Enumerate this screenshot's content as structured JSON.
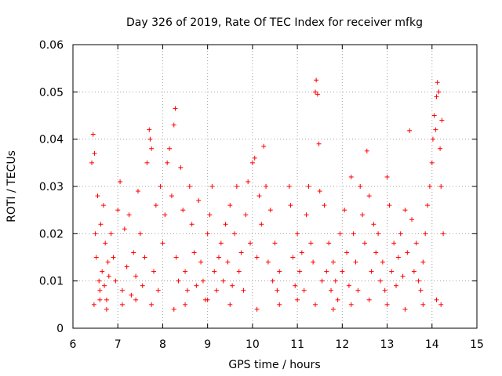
{
  "chart_data": {
    "type": "scatter",
    "title": "Day 326 of 2019, Rate Of TEC Index for receiver mfkg",
    "xlabel": "GPS time / hours",
    "ylabel": "ROTI / TECUs",
    "xlim": [
      6,
      15
    ],
    "ylim": [
      0,
      0.06
    ],
    "x_ticks": [
      6,
      7,
      8,
      9,
      10,
      11,
      12,
      13,
      14,
      15
    ],
    "x_tick_labels": [
      "6",
      "7",
      "8",
      "9",
      "10",
      "11",
      "12",
      "13",
      "14",
      "15"
    ],
    "y_ticks": [
      0,
      0.01,
      0.02,
      0.03,
      0.04,
      0.05,
      0.06
    ],
    "y_tick_labels": [
      "0",
      "0.01",
      "0.02",
      "0.03",
      "0.04",
      "0.05",
      "0.06"
    ],
    "grid": true,
    "marker": "plus",
    "series": [
      {
        "name": "ROTI",
        "color": "#ff0000",
        "x": [
          6.42,
          6.45,
          6.48,
          6.5,
          6.52,
          6.55,
          6.58,
          6.6,
          6.62,
          6.65,
          6.68,
          6.7,
          6.72,
          6.75,
          6.78,
          6.8,
          6.85,
          6.9,
          6.95,
          7.0,
          7.05,
          7.1,
          7.15,
          7.2,
          7.25,
          7.3,
          7.35,
          7.4,
          7.45,
          7.5,
          7.55,
          7.6,
          7.65,
          7.7,
          7.72,
          7.75,
          7.8,
          7.85,
          7.9,
          7.95,
          8.0,
          8.05,
          8.1,
          8.15,
          8.2,
          8.25,
          8.28,
          8.3,
          8.35,
          8.4,
          8.45,
          8.5,
          8.55,
          8.6,
          8.65,
          8.7,
          8.75,
          8.8,
          8.85,
          8.9,
          8.95,
          9.0,
          9.05,
          9.1,
          9.15,
          9.2,
          9.25,
          9.3,
          9.35,
          9.4,
          9.45,
          9.5,
          9.55,
          9.6,
          9.65,
          9.7,
          9.75,
          9.8,
          9.85,
          9.9,
          9.95,
          10.0,
          10.05,
          10.1,
          10.15,
          10.2,
          10.25,
          10.3,
          10.35,
          10.4,
          10.45,
          10.5,
          10.55,
          10.6,
          10.82,
          10.85,
          10.9,
          10.95,
          11.0,
          11.05,
          11.1,
          11.15,
          11.2,
          11.25,
          11.3,
          11.35,
          11.4,
          11.42,
          11.45,
          11.48,
          11.5,
          11.55,
          11.6,
          11.65,
          11.7,
          11.75,
          11.8,
          11.85,
          11.9,
          11.95,
          12.0,
          12.05,
          12.1,
          12.15,
          12.2,
          12.25,
          12.3,
          12.35,
          12.4,
          12.45,
          12.5,
          12.55,
          12.6,
          12.65,
          12.7,
          12.75,
          12.8,
          12.85,
          12.9,
          12.95,
          13.0,
          13.05,
          13.1,
          13.15,
          13.2,
          13.25,
          13.3,
          13.35,
          13.4,
          13.45,
          13.5,
          13.55,
          13.6,
          13.65,
          13.7,
          13.75,
          13.8,
          13.85,
          13.9,
          13.95,
          14.0,
          14.02,
          14.05,
          14.08,
          14.1,
          14.12,
          14.15,
          14.18,
          14.2,
          14.22,
          14.25,
          6.47,
          6.6,
          6.75,
          7.1,
          7.4,
          7.75,
          8.25,
          8.5,
          9.0,
          9.5,
          10.1,
          10.6,
          11.0,
          11.4,
          11.8,
          12.2,
          12.6,
          13.0,
          13.4,
          13.8,
          14.1,
          14.2
        ],
        "y": [
          0.035,
          0.041,
          0.037,
          0.02,
          0.015,
          0.028,
          0.01,
          0.008,
          0.022,
          0.012,
          0.026,
          0.009,
          0.018,
          0.006,
          0.014,
          0.011,
          0.02,
          0.015,
          0.01,
          0.025,
          0.031,
          0.008,
          0.021,
          0.013,
          0.024,
          0.007,
          0.016,
          0.011,
          0.029,
          0.02,
          0.009,
          0.015,
          0.035,
          0.042,
          0.04,
          0.038,
          0.012,
          0.026,
          0.008,
          0.03,
          0.018,
          0.024,
          0.035,
          0.038,
          0.028,
          0.043,
          0.0465,
          0.015,
          0.01,
          0.034,
          0.025,
          0.012,
          0.008,
          0.03,
          0.022,
          0.016,
          0.009,
          0.027,
          0.014,
          0.01,
          0.006,
          0.02,
          0.024,
          0.03,
          0.012,
          0.008,
          0.015,
          0.018,
          0.01,
          0.022,
          0.014,
          0.026,
          0.009,
          0.02,
          0.03,
          0.012,
          0.016,
          0.008,
          0.024,
          0.031,
          0.018,
          0.035,
          0.036,
          0.015,
          0.028,
          0.022,
          0.0385,
          0.03,
          0.014,
          0.025,
          0.01,
          0.018,
          0.008,
          0.012,
          0.03,
          0.026,
          0.015,
          0.009,
          0.02,
          0.012,
          0.016,
          0.008,
          0.024,
          0.03,
          0.018,
          0.014,
          0.05,
          0.0525,
          0.0495,
          0.039,
          0.029,
          0.01,
          0.026,
          0.012,
          0.018,
          0.008,
          0.014,
          0.01,
          0.006,
          0.02,
          0.012,
          0.025,
          0.016,
          0.009,
          0.032,
          0.02,
          0.014,
          0.008,
          0.03,
          0.024,
          0.018,
          0.0375,
          0.028,
          0.012,
          0.022,
          0.016,
          0.02,
          0.01,
          0.014,
          0.008,
          0.032,
          0.026,
          0.012,
          0.018,
          0.009,
          0.015,
          0.02,
          0.011,
          0.025,
          0.016,
          0.0418,
          0.023,
          0.012,
          0.018,
          0.01,
          0.008,
          0.014,
          0.02,
          0.026,
          0.03,
          0.035,
          0.04,
          0.045,
          0.042,
          0.049,
          0.052,
          0.05,
          0.038,
          0.03,
          0.044,
          0.02,
          0.005,
          0.006,
          0.004,
          0.005,
          0.006,
          0.005,
          0.004,
          0.005,
          0.006,
          0.005,
          0.004,
          0.005,
          0.006,
          0.005,
          0.004,
          0.005,
          0.006,
          0.005,
          0.004,
          0.005,
          0.006,
          0.005
        ]
      }
    ]
  }
}
